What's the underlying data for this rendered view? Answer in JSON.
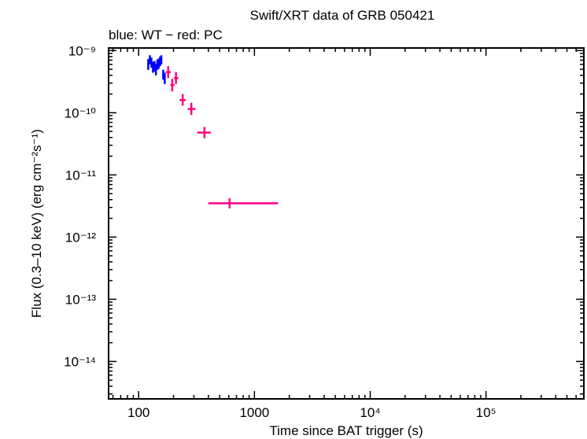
{
  "chart_data": {
    "type": "scatter",
    "title": "Swift/XRT data of GRB 050421",
    "subtitle": "blue: WT − red: PC",
    "xlabel": "Time since BAT trigger (s)",
    "ylabel": "Flux (0.3–10 keV) (erg cm⁻²s⁻¹)",
    "xscale": "log",
    "yscale": "log",
    "xlim": [
      55,
      700000
    ],
    "ylim": [
      2.5e-15,
      1.1e-09
    ],
    "grid": false,
    "x_ticks": [
      {
        "value": 100,
        "label": "100"
      },
      {
        "value": 1000,
        "label": "1000"
      },
      {
        "value": 10000,
        "label": "10⁴"
      },
      {
        "value": 100000,
        "label": "10⁵"
      }
    ],
    "y_ticks": [
      {
        "value": 1e-09,
        "label": "10⁻⁹"
      },
      {
        "value": 1e-10,
        "label": "10⁻¹⁰"
      },
      {
        "value": 1e-11,
        "label": "10⁻¹¹"
      },
      {
        "value": 1e-12,
        "label": "10⁻¹²"
      },
      {
        "value": 1e-13,
        "label": "10⁻¹³"
      },
      {
        "value": 1e-14,
        "label": "10⁻¹⁴"
      }
    ],
    "series": [
      {
        "mode": "WT",
        "color": "#0000ff",
        "points": [
          {
            "x": 121,
            "xlo": 119,
            "xhi": 123,
            "y": 6e-10,
            "ylo": 4.9e-10,
            "yhi": 7.3e-10
          },
          {
            "x": 125,
            "xlo": 123,
            "xhi": 127,
            "y": 7.1e-10,
            "ylo": 6e-10,
            "yhi": 8.4e-10
          },
          {
            "x": 129,
            "xlo": 127,
            "xhi": 131,
            "y": 6.4e-10,
            "ylo": 5.3e-10,
            "yhi": 7.7e-10
          },
          {
            "x": 133,
            "xlo": 131,
            "xhi": 135,
            "y": 5.4e-10,
            "ylo": 4.4e-10,
            "yhi": 6.6e-10
          },
          {
            "x": 137,
            "xlo": 135,
            "xhi": 139,
            "y": 5.6e-10,
            "ylo": 4.6e-10,
            "yhi": 6.8e-10
          },
          {
            "x": 141,
            "xlo": 139,
            "xhi": 143,
            "y": 5e-10,
            "ylo": 4e-10,
            "yhi": 6.1e-10
          },
          {
            "x": 145,
            "xlo": 143,
            "xhi": 147,
            "y": 6e-10,
            "ylo": 4.9e-10,
            "yhi": 7.2e-10
          },
          {
            "x": 149,
            "xlo": 147,
            "xhi": 151,
            "y": 6.2e-10,
            "ylo": 5.1e-10,
            "yhi": 7.4e-10
          },
          {
            "x": 153,
            "xlo": 151,
            "xhi": 155,
            "y": 6.7e-10,
            "ylo": 5.6e-10,
            "yhi": 8e-10
          },
          {
            "x": 157,
            "xlo": 155,
            "xhi": 159,
            "y": 7.1e-10,
            "ylo": 6e-10,
            "yhi": 8.4e-10
          },
          {
            "x": 163,
            "xlo": 160,
            "xhi": 166,
            "y": 4.1e-10,
            "ylo": 3.4e-10,
            "yhi": 4.9e-10
          },
          {
            "x": 168,
            "xlo": 166,
            "xhi": 170,
            "y": 3.6e-10,
            "ylo": 2.9e-10,
            "yhi": 4.4e-10
          }
        ]
      },
      {
        "mode": "PC",
        "color": "#ff0080",
        "points": [
          {
            "x": 180,
            "xlo": 172,
            "xhi": 190,
            "y": 4.5e-10,
            "ylo": 3.6e-10,
            "yhi": 5.6e-10
          },
          {
            "x": 195,
            "xlo": 188,
            "xhi": 204,
            "y": 2.8e-10,
            "ylo": 2.2e-10,
            "yhi": 3.5e-10
          },
          {
            "x": 210,
            "xlo": 202,
            "xhi": 220,
            "y": 3.6e-10,
            "ylo": 2.9e-10,
            "yhi": 4.5e-10
          },
          {
            "x": 240,
            "xlo": 226,
            "xhi": 255,
            "y": 1.6e-10,
            "ylo": 1.3e-10,
            "yhi": 2e-10
          },
          {
            "x": 285,
            "xlo": 265,
            "xhi": 310,
            "y": 1.15e-10,
            "ylo": 9.2e-11,
            "yhi": 1.45e-10
          },
          {
            "x": 370,
            "xlo": 320,
            "xhi": 420,
            "y": 4.8e-11,
            "ylo": 3.9e-11,
            "yhi": 5.9e-11
          },
          {
            "x": 610,
            "xlo": 400,
            "xhi": 1600,
            "y": 3.5e-12,
            "ylo": 2.9e-12,
            "yhi": 4.2e-12
          }
        ]
      }
    ]
  }
}
